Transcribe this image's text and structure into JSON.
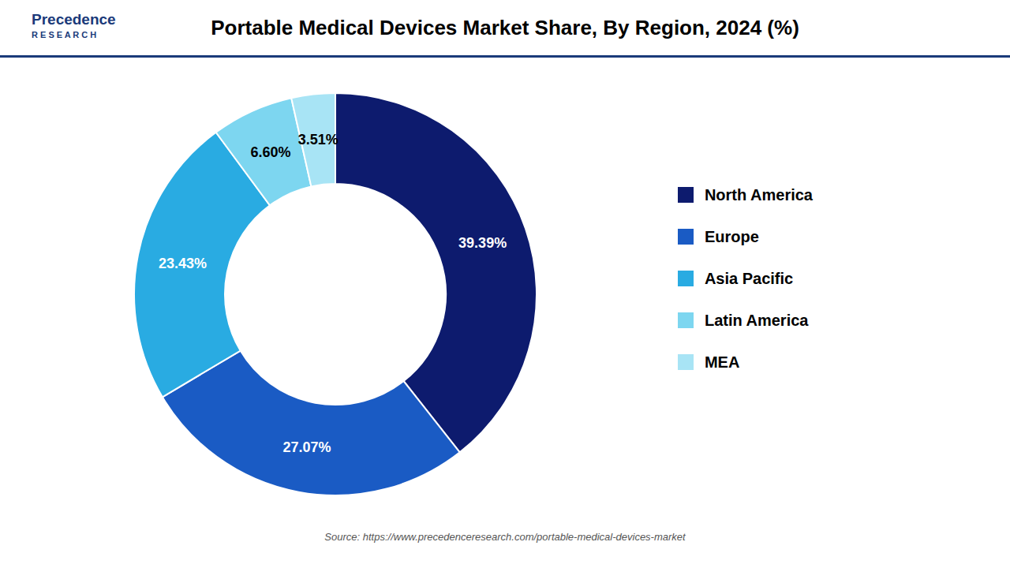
{
  "chart_data": {
    "type": "pie",
    "title": "Portable Medical Devices Market Share, By Region, 2024 (%)",
    "categories": [
      "North America",
      "Europe",
      "Asia Pacific",
      "Latin America",
      "MEA"
    ],
    "values": [
      39.39,
      27.07,
      23.43,
      6.6,
      3.51
    ],
    "value_labels": [
      "39.39%",
      "27.07%",
      "23.43%",
      "6.60%",
      "3.51%"
    ],
    "colors": [
      "#0d1b6e",
      "#1a5bc4",
      "#29abe2",
      "#7dd6f0",
      "#a8e4f5"
    ],
    "data_labels": true,
    "legend": "right",
    "annotations": [
      "Precedence",
      "R E S E A R C H",
      "Source: https://www.precedenceresearch.com/portable-medical-devices-market"
    ]
  }
}
